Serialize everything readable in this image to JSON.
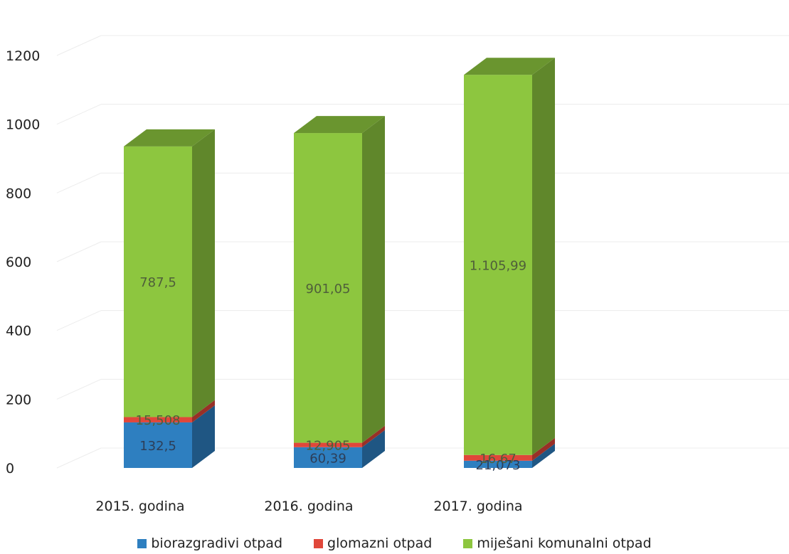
{
  "chart_data": {
    "type": "bar",
    "stacked": true,
    "three_d": true,
    "categories": [
      "2015. godina",
      "2016. godina",
      "2017. godina"
    ],
    "series": [
      {
        "name": "biorazgradivi otpad",
        "values": [
          132.5,
          60.39,
          21.073
        ],
        "labels": [
          "132,5",
          "60,39",
          "21,073"
        ],
        "color": "#2e7fc0"
      },
      {
        "name": "glomazni otpad",
        "values": [
          15.508,
          12.905,
          16.67
        ],
        "labels": [
          "15,508",
          "12,905",
          "16,67"
        ],
        "color": "#e0473a"
      },
      {
        "name": "miješani komunalni otpad",
        "values": [
          787.5,
          901.05,
          1105.99
        ],
        "labels": [
          "787,5",
          "901,05",
          "1.105,99"
        ],
        "color": "#8dc63f"
      }
    ],
    "yticks": [
      "0",
      "200",
      "400",
      "600",
      "800",
      "1000",
      "1200"
    ],
    "ylim": [
      0,
      1200
    ],
    "grid": true,
    "legend_position": "bottom"
  }
}
